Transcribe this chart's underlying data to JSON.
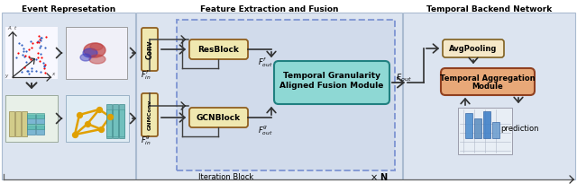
{
  "title_left": "Event Represetation",
  "title_mid": "Feature Extraction and Fusion",
  "title_right": "Temporal Backend Network",
  "conv_box_color": "#f0e8b0",
  "fusion_box_color": "#8ed8d4",
  "avgpool_box_color": "#f5e8c8",
  "temporal_box_color": "#e8a878",
  "dashed_border_color": "#4060c0",
  "arrow_color": "#303030",
  "section_bg": "#dce4f0",
  "iter_bg": "#c8d4e8"
}
